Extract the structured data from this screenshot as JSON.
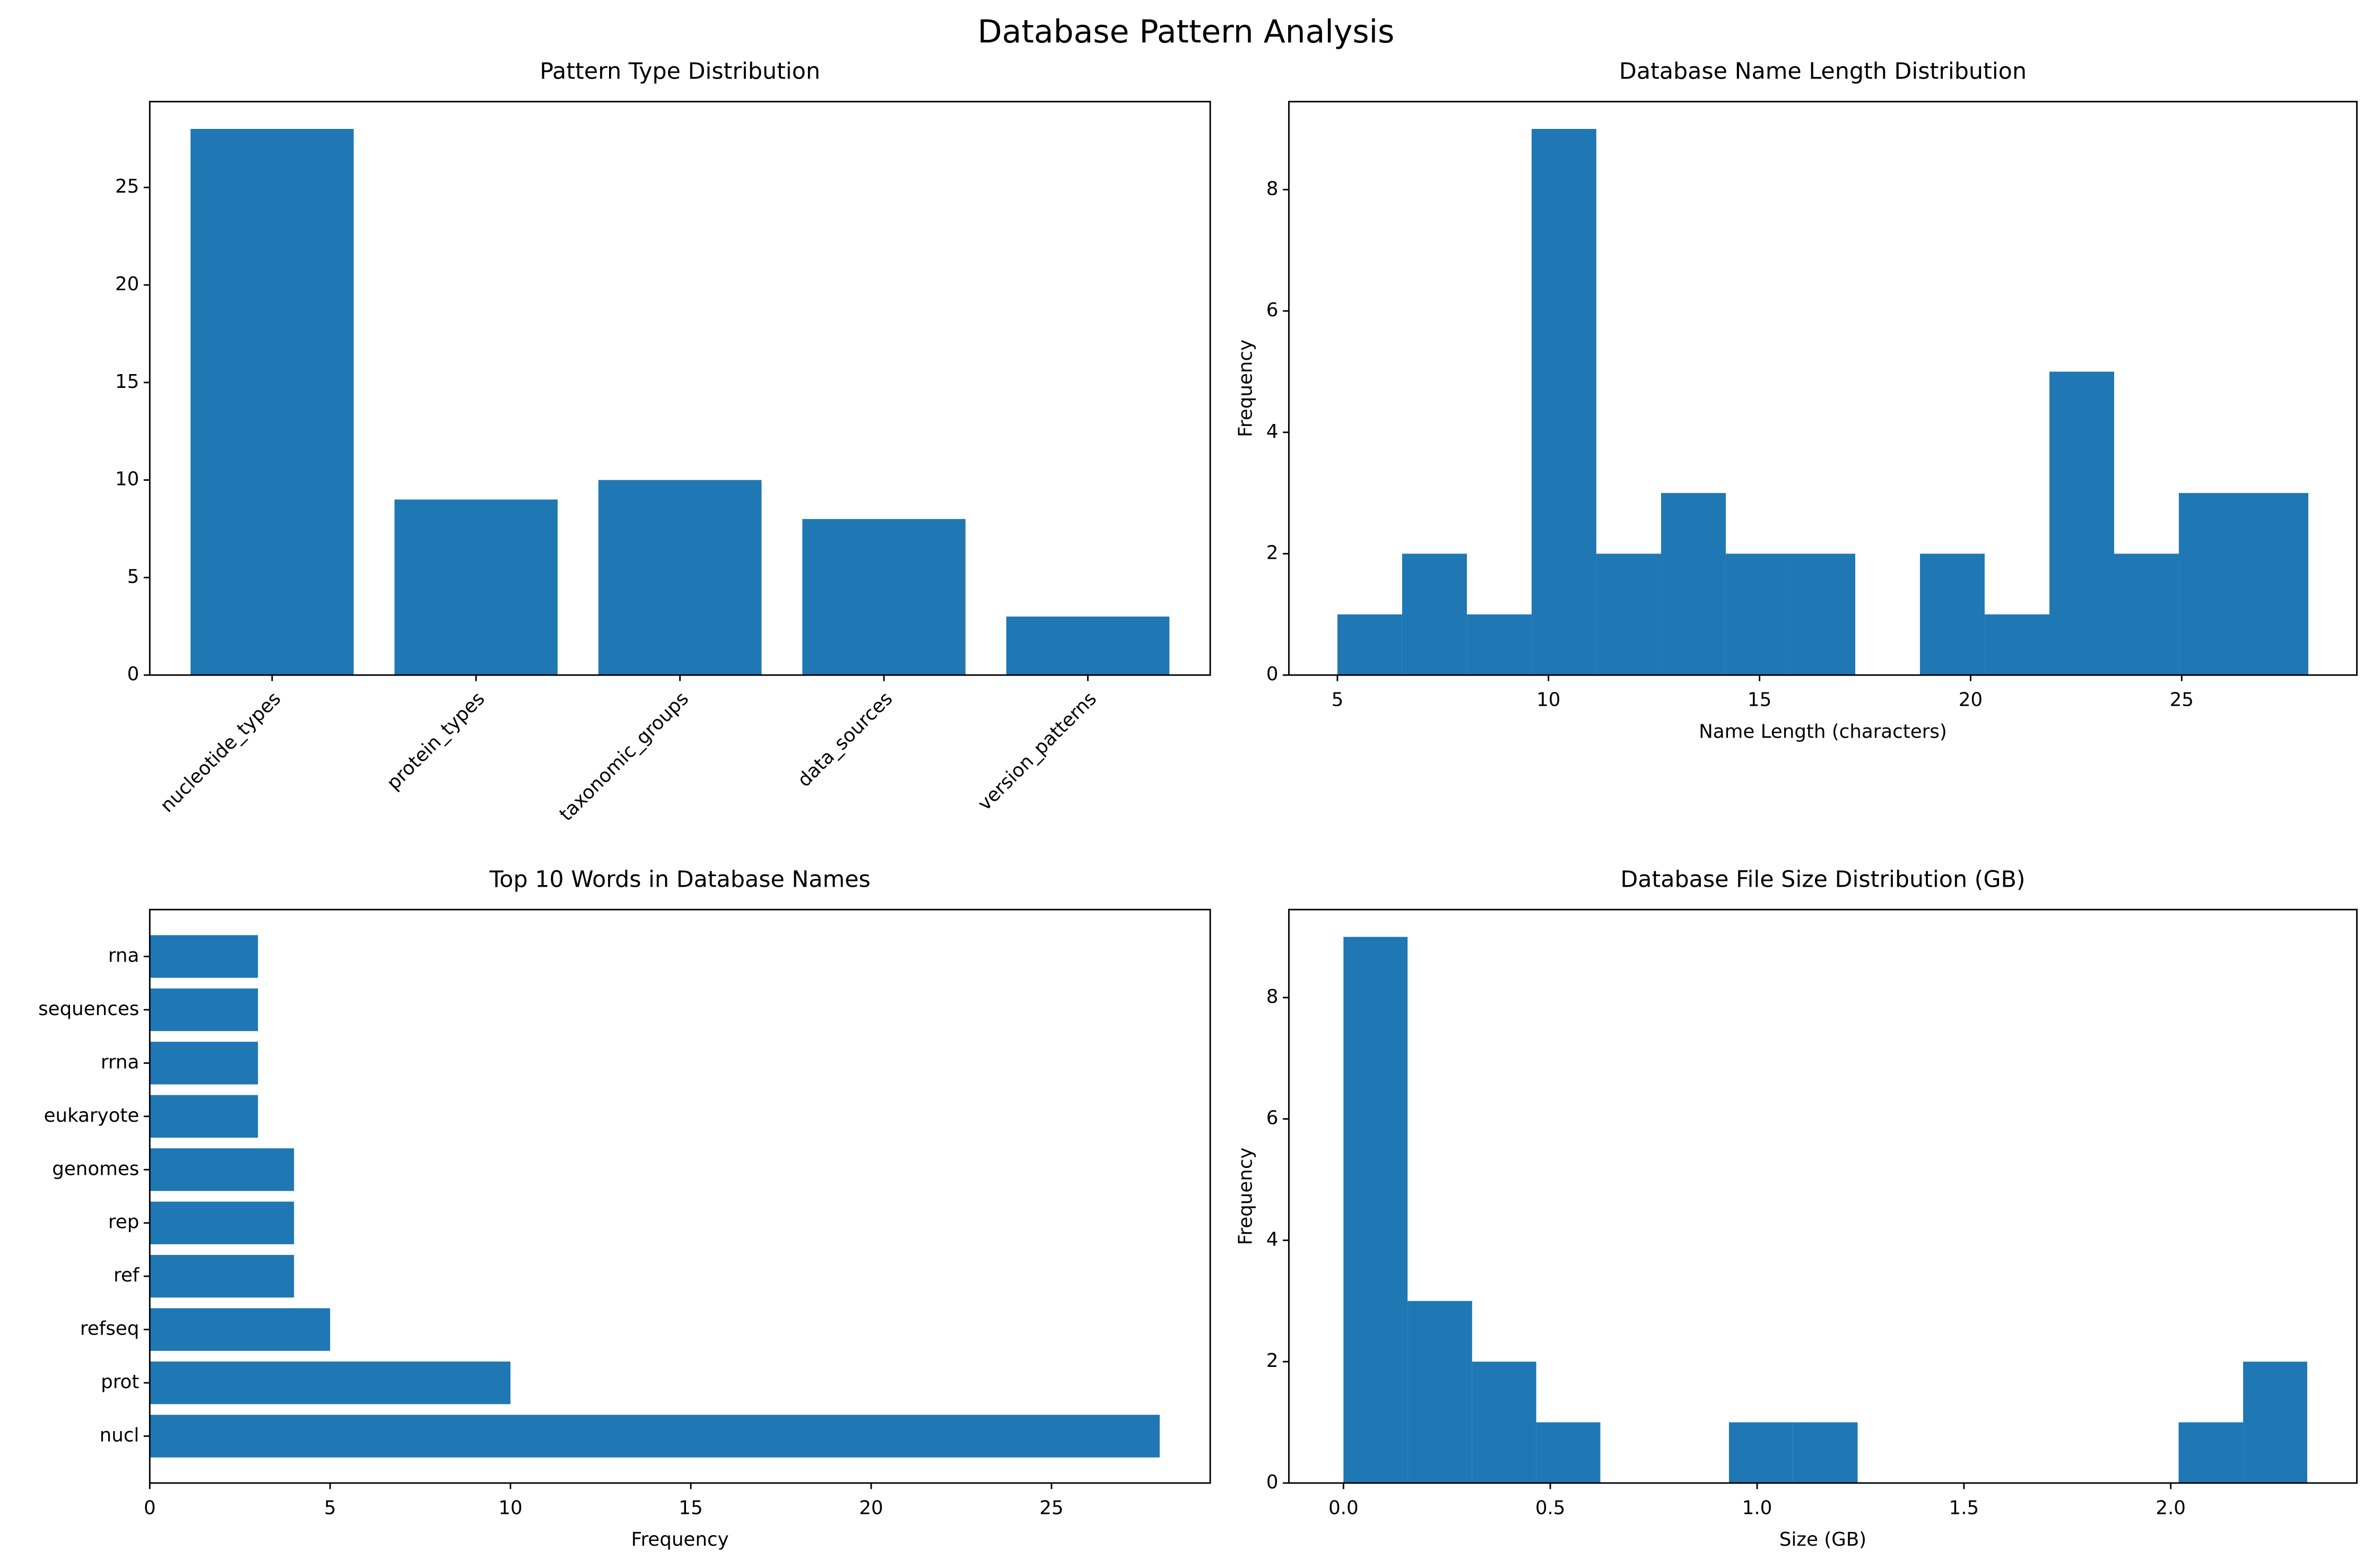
{
  "title": "Database Pattern Analysis",
  "chart_data": [
    {
      "type": "bar",
      "title": "Pattern Type Distribution",
      "categories": [
        "nucleotide_types",
        "protein_types",
        "taxonomic_groups",
        "data_sources",
        "version_patterns"
      ],
      "values": [
        28,
        9,
        10,
        8,
        3
      ],
      "color": "#1f77b4",
      "ylim": [
        0,
        29.4
      ],
      "yticks": [
        0,
        5,
        10,
        15,
        20,
        25
      ]
    },
    {
      "type": "hist",
      "title": "Database Name Length Distribution",
      "xlabel": "Name Length (characters)",
      "ylabel": "Frequency",
      "bins": [
        5,
        6.533,
        8.067,
        9.6,
        11.133,
        12.667,
        14.2,
        15.733,
        17.267,
        18.8,
        20.333,
        21.867,
        23.4,
        24.933,
        26.467,
        28
      ],
      "counts": [
        1,
        2,
        1,
        9,
        2,
        3,
        2,
        2,
        0,
        2,
        1,
        5,
        2,
        3,
        3
      ],
      "color": "#1f77b4",
      "xlim": [
        3.85,
        29.15
      ],
      "xticks": [
        5,
        10,
        15,
        20,
        25
      ],
      "ylim": [
        0,
        9.45
      ],
      "yticks": [
        0,
        2,
        4,
        6,
        8
      ]
    },
    {
      "type": "barh",
      "title": "Top 10 Words in Database Names",
      "xlabel": "Frequency",
      "categories": [
        "nucl",
        "prot",
        "refseq",
        "ref",
        "rep",
        "genomes",
        "eukaryote",
        "rrna",
        "sequences",
        "rna"
      ],
      "values": [
        28,
        10,
        5,
        4,
        4,
        4,
        3,
        3,
        3,
        3
      ],
      "color": "#1f77b4",
      "xlim": [
        0,
        29.4
      ],
      "xticks": [
        0,
        5,
        10,
        15,
        20,
        25
      ]
    },
    {
      "type": "hist",
      "title": "Database File Size Distribution (GB)",
      "xlabel": "Size (GB)",
      "ylabel": "Frequency",
      "bins": [
        0,
        0.155,
        0.311,
        0.466,
        0.621,
        0.777,
        0.932,
        1.087,
        1.243,
        1.398,
        1.553,
        1.709,
        1.864,
        2.019,
        2.175,
        2.33
      ],
      "counts": [
        9,
        3,
        2,
        1,
        0,
        0,
        1,
        1,
        0,
        0,
        0,
        0,
        0,
        1,
        2
      ],
      "color": "#1f77b4",
      "xlim": [
        -0.132,
        2.45
      ],
      "xticks": [
        {
          "value": 0,
          "label": "0.0"
        },
        {
          "value": 0.5,
          "label": "0.5"
        },
        {
          "value": 1,
          "label": "1.0"
        },
        {
          "value": 1.5,
          "label": "1.5"
        },
        {
          "value": 2,
          "label": "2.0"
        }
      ],
      "ylim": [
        0,
        9.45
      ],
      "yticks": [
        0,
        2,
        4,
        6,
        8
      ]
    }
  ]
}
